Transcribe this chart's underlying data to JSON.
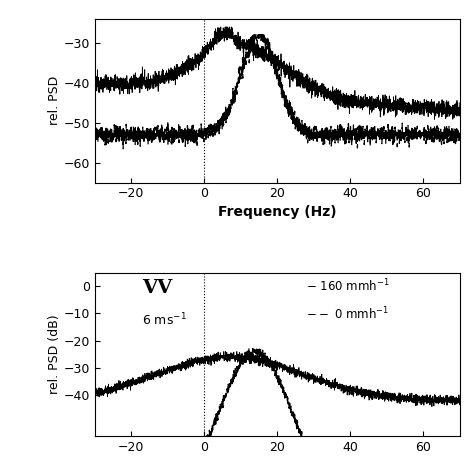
{
  "top_plot": {
    "xlim": [
      -30,
      70
    ],
    "ylim": [
      -65,
      -24
    ],
    "yticks": [
      -60,
      -50,
      -40,
      -30
    ],
    "ylabel": "rel. PSD",
    "dotted_x": 0
  },
  "bottom_plot": {
    "xlim": [
      -30,
      70
    ],
    "ylim": [
      -55,
      5
    ],
    "yticks": [
      -40,
      -30,
      -20,
      -10,
      0
    ],
    "ylabel": "rel. PSD (dB)",
    "dotted_x": 0
  },
  "shared_xlabel": "Frequency (Hz)",
  "fig_bg": "#ffffff",
  "line_color": "#000000"
}
